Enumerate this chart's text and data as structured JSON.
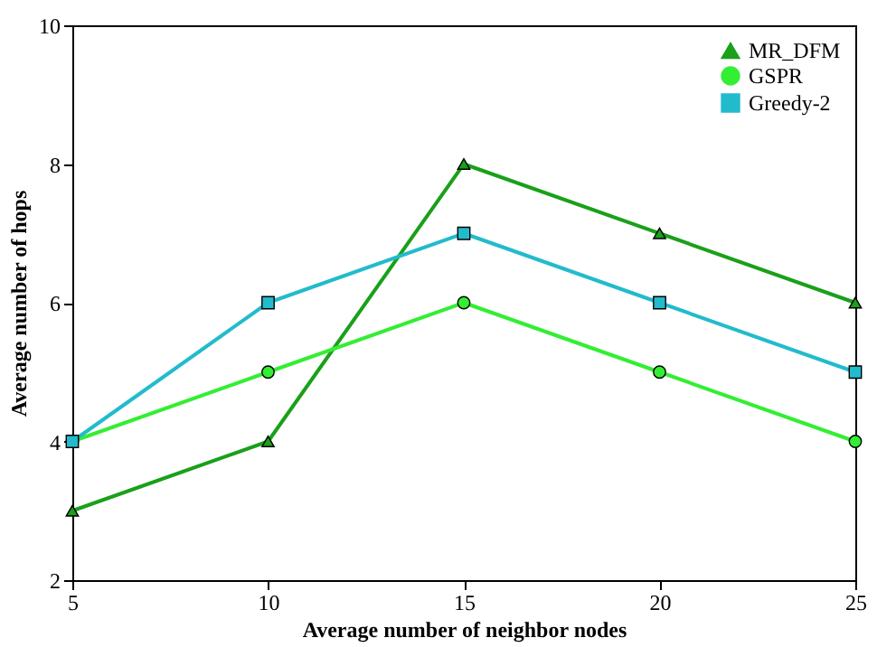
{
  "chart_data": {
    "type": "line",
    "xlabel": "Average number of neighbor nodes",
    "ylabel": "Average number of hops",
    "x": [
      5,
      10,
      15,
      20,
      25
    ],
    "series": [
      {
        "name": "MR_DFM",
        "color": "#1aa01a",
        "marker": "triangle",
        "values": [
          3,
          4,
          8,
          7,
          6
        ]
      },
      {
        "name": "GSPR",
        "color": "#33ee33",
        "marker": "circle",
        "values": [
          4,
          5,
          6,
          5,
          4
        ]
      },
      {
        "name": "Greedy-2",
        "color": "#22bbcc",
        "marker": "square",
        "values": [
          4,
          6,
          7,
          6,
          5
        ]
      }
    ],
    "xlim": [
      5,
      25
    ],
    "xticks": [
      5,
      10,
      15,
      20,
      25
    ],
    "ylim": [
      2,
      10
    ],
    "yticks": [
      2,
      4,
      6,
      8,
      10
    ],
    "grid": false,
    "legend": "top right",
    "line_style": "solid"
  }
}
